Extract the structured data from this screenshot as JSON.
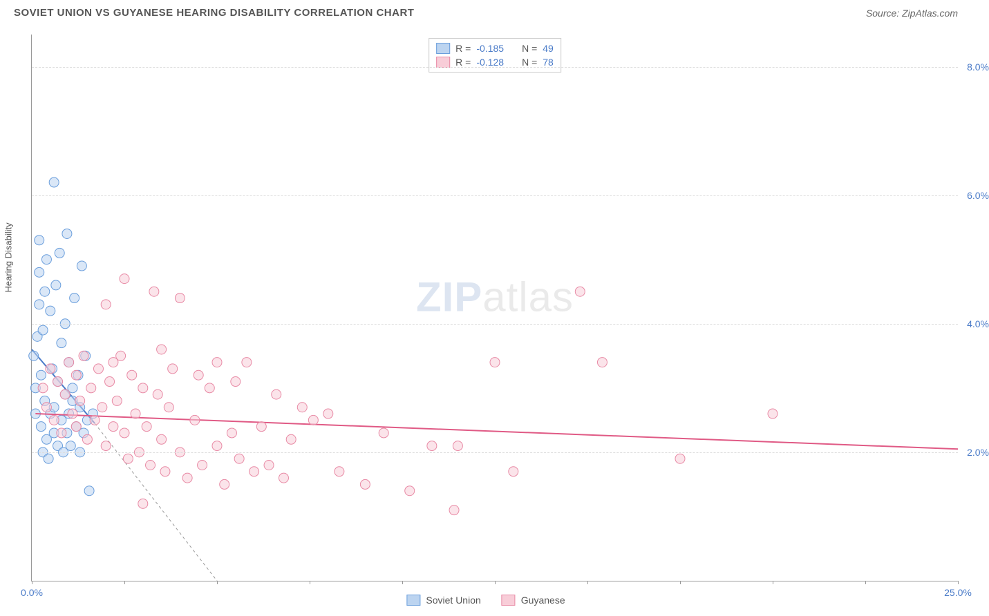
{
  "title": "SOVIET UNION VS GUYANESE HEARING DISABILITY CORRELATION CHART",
  "source": "Source: ZipAtlas.com",
  "watermark_a": "ZIP",
  "watermark_b": "atlas",
  "ylabel": "Hearing Disability",
  "legend_top": [
    {
      "color_fill": "#bcd4f0",
      "color_border": "#6a9edc",
      "r_label": "R =",
      "r_value": "-0.185",
      "n_label": "N =",
      "n_value": "49"
    },
    {
      "color_fill": "#f8cdd8",
      "color_border": "#e88aa5",
      "r_label": "R =",
      "r_value": "-0.128",
      "n_label": "N =",
      "n_value": "78"
    }
  ],
  "legend_bottom": [
    {
      "color_fill": "#bcd4f0",
      "color_border": "#6a9edc",
      "label": "Soviet Union"
    },
    {
      "color_fill": "#f8cdd8",
      "color_border": "#e88aa5",
      "label": "Guyanese"
    }
  ],
  "chart": {
    "type": "scatter",
    "xlim": [
      0,
      25
    ],
    "ylim": [
      0,
      8.5
    ],
    "y_gridlines": [
      2,
      4,
      6,
      8
    ],
    "y_tick_labels": [
      {
        "value": 2,
        "text": "2.0%"
      },
      {
        "value": 4,
        "text": "4.0%"
      },
      {
        "value": 6,
        "text": "6.0%"
      },
      {
        "value": 8,
        "text": "8.0%"
      }
    ],
    "x_tick_marks": [
      0,
      2.5,
      5,
      7.5,
      10,
      12.5,
      15,
      17.5,
      20,
      22.5,
      25
    ],
    "x_tick_labels": [
      {
        "value": 0,
        "text": "0.0%"
      },
      {
        "value": 25,
        "text": "25.0%"
      }
    ],
    "background_color": "#ffffff",
    "grid_color": "#dddddd",
    "marker_radius": 7,
    "marker_opacity": 0.55,
    "series": [
      {
        "name": "Soviet Union",
        "fill": "#bcd4f0",
        "stroke": "#6a9edc",
        "trend": {
          "x1": 0.0,
          "y1": 3.6,
          "x2": 1.7,
          "y2": 2.45,
          "dash_extend_to_x": 5.0,
          "dash_extend_to_y": 0.0,
          "color": "#4a7bc8",
          "width": 2
        },
        "points": [
          [
            0.05,
            3.5
          ],
          [
            0.1,
            3.0
          ],
          [
            0.1,
            2.6
          ],
          [
            0.15,
            3.8
          ],
          [
            0.2,
            4.8
          ],
          [
            0.2,
            4.3
          ],
          [
            0.2,
            5.3
          ],
          [
            0.25,
            2.4
          ],
          [
            0.25,
            3.2
          ],
          [
            0.3,
            3.9
          ],
          [
            0.3,
            2.0
          ],
          [
            0.35,
            4.5
          ],
          [
            0.35,
            2.8
          ],
          [
            0.4,
            2.2
          ],
          [
            0.4,
            5.0
          ],
          [
            0.45,
            1.9
          ],
          [
            0.5,
            2.6
          ],
          [
            0.5,
            4.2
          ],
          [
            0.55,
            3.3
          ],
          [
            0.6,
            2.3
          ],
          [
            0.6,
            2.7
          ],
          [
            0.65,
            4.6
          ],
          [
            0.7,
            2.1
          ],
          [
            0.7,
            3.1
          ],
          [
            0.75,
            5.1
          ],
          [
            0.8,
            2.5
          ],
          [
            0.8,
            3.7
          ],
          [
            0.85,
            2.0
          ],
          [
            0.9,
            2.9
          ],
          [
            0.9,
            4.0
          ],
          [
            0.95,
            2.3
          ],
          [
            1.0,
            2.6
          ],
          [
            1.0,
            3.4
          ],
          [
            1.05,
            2.1
          ],
          [
            1.1,
            3.0
          ],
          [
            1.1,
            2.8
          ],
          [
            1.15,
            4.4
          ],
          [
            1.2,
            2.4
          ],
          [
            1.25,
            3.2
          ],
          [
            1.3,
            2.0
          ],
          [
            1.3,
            2.7
          ],
          [
            1.35,
            4.9
          ],
          [
            1.4,
            2.3
          ],
          [
            1.45,
            3.5
          ],
          [
            1.5,
            2.5
          ],
          [
            0.6,
            6.2
          ],
          [
            0.95,
            5.4
          ],
          [
            1.55,
            1.4
          ],
          [
            1.65,
            2.6
          ]
        ]
      },
      {
        "name": "Guyanese",
        "fill": "#f8cdd8",
        "stroke": "#e88aa5",
        "trend": {
          "x1": 0.1,
          "y1": 2.6,
          "x2": 25.0,
          "y2": 2.05,
          "color": "#e05a85",
          "width": 2
        },
        "points": [
          [
            0.3,
            3.0
          ],
          [
            0.4,
            2.7
          ],
          [
            0.5,
            3.3
          ],
          [
            0.6,
            2.5
          ],
          [
            0.7,
            3.1
          ],
          [
            0.8,
            2.3
          ],
          [
            0.9,
            2.9
          ],
          [
            1.0,
            3.4
          ],
          [
            1.1,
            2.6
          ],
          [
            1.2,
            3.2
          ],
          [
            1.2,
            2.4
          ],
          [
            1.3,
            2.8
          ],
          [
            1.4,
            3.5
          ],
          [
            1.5,
            2.2
          ],
          [
            1.6,
            3.0
          ],
          [
            1.7,
            2.5
          ],
          [
            1.8,
            3.3
          ],
          [
            1.9,
            2.7
          ],
          [
            2.0,
            2.1
          ],
          [
            2.1,
            3.1
          ],
          [
            2.2,
            2.4
          ],
          [
            2.2,
            3.4
          ],
          [
            2.3,
            2.8
          ],
          [
            2.4,
            3.5
          ],
          [
            2.5,
            2.3
          ],
          [
            2.6,
            1.9
          ],
          [
            2.7,
            3.2
          ],
          [
            2.8,
            2.6
          ],
          [
            2.9,
            2.0
          ],
          [
            3.0,
            3.0
          ],
          [
            3.1,
            2.4
          ],
          [
            3.2,
            1.8
          ],
          [
            3.3,
            4.5
          ],
          [
            3.4,
            2.9
          ],
          [
            3.5,
            2.2
          ],
          [
            3.6,
            1.7
          ],
          [
            3.7,
            2.7
          ],
          [
            3.8,
            3.3
          ],
          [
            4.0,
            2.0
          ],
          [
            4.2,
            1.6
          ],
          [
            4.4,
            2.5
          ],
          [
            4.6,
            1.8
          ],
          [
            4.8,
            3.0
          ],
          [
            5.0,
            2.1
          ],
          [
            5.0,
            3.4
          ],
          [
            5.2,
            1.5
          ],
          [
            5.4,
            2.3
          ],
          [
            5.6,
            1.9
          ],
          [
            5.8,
            3.4
          ],
          [
            6.0,
            1.7
          ],
          [
            6.2,
            2.4
          ],
          [
            6.4,
            1.8
          ],
          [
            6.6,
            2.9
          ],
          [
            6.8,
            1.6
          ],
          [
            7.0,
            2.2
          ],
          [
            7.3,
            2.7
          ],
          [
            7.6,
            2.5
          ],
          [
            8.0,
            2.6
          ],
          [
            8.3,
            1.7
          ],
          [
            9.0,
            1.5
          ],
          [
            9.5,
            2.3
          ],
          [
            10.2,
            1.4
          ],
          [
            10.8,
            2.1
          ],
          [
            11.4,
            1.1
          ],
          [
            11.5,
            2.1
          ],
          [
            12.5,
            3.4
          ],
          [
            13.0,
            1.7
          ],
          [
            14.8,
            4.5
          ],
          [
            15.4,
            3.4
          ],
          [
            17.5,
            1.9
          ],
          [
            20.0,
            2.6
          ],
          [
            2.0,
            4.3
          ],
          [
            2.5,
            4.7
          ],
          [
            3.0,
            1.2
          ],
          [
            3.5,
            3.6
          ],
          [
            4.5,
            3.2
          ],
          [
            5.5,
            3.1
          ],
          [
            4.0,
            4.4
          ]
        ]
      }
    ]
  }
}
